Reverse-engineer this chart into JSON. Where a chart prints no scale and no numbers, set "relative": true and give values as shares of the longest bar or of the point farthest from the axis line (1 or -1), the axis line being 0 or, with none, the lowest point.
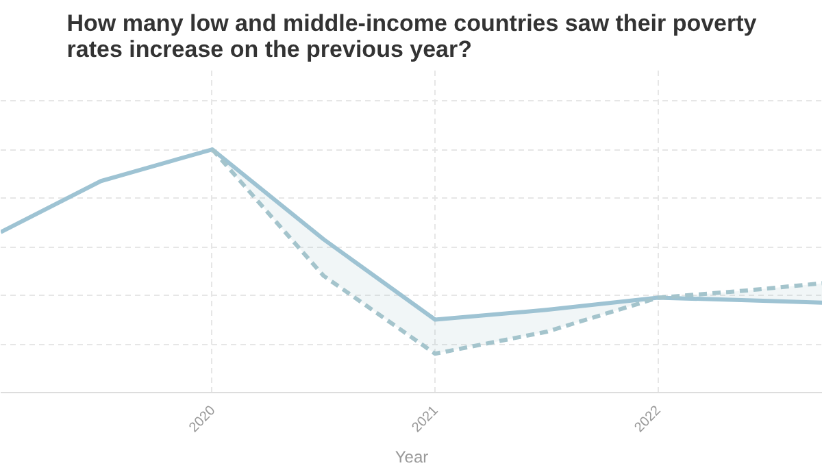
{
  "chart_data": {
    "type": "line",
    "title": "How many low and middle-income countries saw their poverty rates increase on the previous year?",
    "xlabel": "Year",
    "relative": true,
    "x": [
      2019.05,
      2019.5,
      2020,
      2020.5,
      2021,
      2021.5,
      2022,
      2022.4,
      2022.74
    ],
    "xlim": [
      2019.05,
      2022.74
    ],
    "xticks": [
      2020,
      2021,
      2022
    ],
    "series": [
      {
        "color": "#9ec3d3",
        "line_style": "solid",
        "values": [
          0.66,
          0.87,
          1.0,
          0.63,
          0.3,
          0.34,
          0.39,
          0.38,
          0.37
        ]
      },
      {
        "color": "#a4c4cc",
        "line_style": "dashed",
        "values": [
          null,
          null,
          1.0,
          0.48,
          0.16,
          0.25,
          0.39,
          0.42,
          0.45
        ],
        "lower": [
          null,
          null,
          1.0,
          0.48,
          0.16,
          0.25,
          0.39,
          0.38,
          0.37
        ],
        "upper": [
          null,
          null,
          1.0,
          0.63,
          0.3,
          0.34,
          0.39,
          0.42,
          0.45
        ]
      }
    ],
    "grid": true,
    "marker": "none"
  }
}
